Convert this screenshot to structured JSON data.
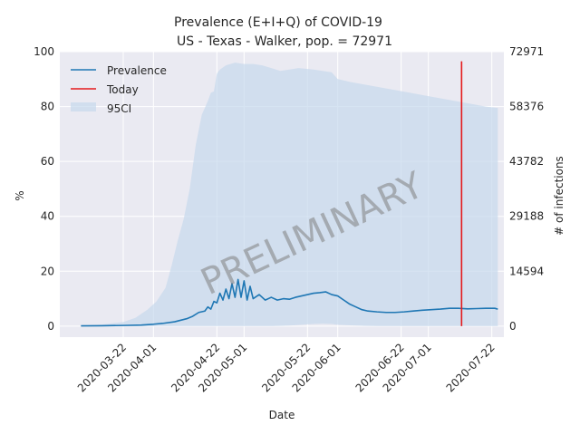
{
  "chart_data": {
    "type": "line",
    "title_line1": "Prevalence (E+I+Q) of COVID-19",
    "title_line2": "US - Texas - Walker, pop. = 72971",
    "xlabel": "Date",
    "ylabel": "%",
    "ylabel_right": "# of infections",
    "ylim": [
      -4,
      100
    ],
    "x_start_date": "2020-03-01",
    "x_end_date": "2020-07-26",
    "yticks_left": [
      "0",
      "20",
      "40",
      "60",
      "80",
      "100"
    ],
    "yticks_left_values": [
      0,
      20,
      40,
      60,
      80,
      100
    ],
    "yticks_right": [
      "0",
      "14594",
      "29188",
      "43782",
      "58376",
      "72971"
    ],
    "yticks_right_values": [
      0,
      20,
      40,
      60,
      80,
      100
    ],
    "xticks": [
      "2020-03-22",
      "2020-04-01",
      "2020-04-22",
      "2020-05-01",
      "2020-05-22",
      "2020-06-01",
      "2020-06-22",
      "2020-07-01",
      "2020-07-22"
    ],
    "grid": true,
    "legend_position": "top-left",
    "legend": [
      "Prevalence",
      "Today",
      "95CI"
    ],
    "watermark": "PRELIMINARY",
    "colors": {
      "prevalence": "#1f77b4",
      "today": "#e41a1c",
      "ci": "#c6d8ec",
      "plot_bg": "#eaeaf2",
      "grid": "#ffffff"
    },
    "today": {
      "date": "2020-07-12",
      "y_bottom": 0,
      "y_top": 96.5
    },
    "series": [
      {
        "name": "Prevalence",
        "x": [
          "2020-03-08",
          "2020-03-15",
          "2020-03-22",
          "2020-03-28",
          "2020-04-01",
          "2020-04-04",
          "2020-04-08",
          "2020-04-12",
          "2020-04-14",
          "2020-04-16",
          "2020-04-18",
          "2020-04-19",
          "2020-04-20",
          "2020-04-21",
          "2020-04-22",
          "2020-04-23",
          "2020-04-24",
          "2020-04-25",
          "2020-04-26",
          "2020-04-27",
          "2020-04-28",
          "2020-04-29",
          "2020-04-30",
          "2020-05-01",
          "2020-05-02",
          "2020-05-03",
          "2020-05-04",
          "2020-05-06",
          "2020-05-08",
          "2020-05-10",
          "2020-05-12",
          "2020-05-14",
          "2020-05-16",
          "2020-05-18",
          "2020-05-20",
          "2020-05-22",
          "2020-05-24",
          "2020-05-26",
          "2020-05-28",
          "2020-05-30",
          "2020-06-01",
          "2020-06-03",
          "2020-06-05",
          "2020-06-07",
          "2020-06-09",
          "2020-06-11",
          "2020-06-14",
          "2020-06-17",
          "2020-06-20",
          "2020-06-23",
          "2020-06-26",
          "2020-06-29",
          "2020-07-02",
          "2020-07-05",
          "2020-07-08",
          "2020-07-11",
          "2020-07-14",
          "2020-07-17",
          "2020-07-20",
          "2020-07-23",
          "2020-07-24"
        ],
        "values": [
          0.1,
          0.15,
          0.25,
          0.4,
          0.7,
          1.0,
          1.6,
          2.7,
          3.6,
          5.0,
          5.5,
          7.0,
          6.2,
          9.0,
          8.5,
          12.0,
          9.5,
          13.5,
          10.0,
          15.5,
          10.5,
          17.0,
          10.5,
          16.5,
          9.5,
          14.5,
          10.0,
          11.5,
          9.5,
          10.5,
          9.5,
          10.0,
          9.8,
          10.5,
          11.0,
          11.5,
          12.0,
          12.2,
          12.5,
          11.5,
          11.0,
          9.5,
          8.0,
          7.0,
          6.0,
          5.5,
          5.2,
          5.0,
          5.0,
          5.2,
          5.5,
          5.8,
          6.0,
          6.2,
          6.5,
          6.5,
          6.3,
          6.4,
          6.5,
          6.5,
          6.2
        ]
      }
    ],
    "ci": {
      "name": "95CI",
      "x": [
        "2020-03-08",
        "2020-03-15",
        "2020-03-22",
        "2020-03-26",
        "2020-03-30",
        "2020-04-02",
        "2020-04-05",
        "2020-04-07",
        "2020-04-09",
        "2020-04-11",
        "2020-04-13",
        "2020-04-15",
        "2020-04-17",
        "2020-04-19",
        "2020-04-20",
        "2020-04-21",
        "2020-04-22",
        "2020-04-23",
        "2020-04-25",
        "2020-04-28",
        "2020-05-01",
        "2020-05-04",
        "2020-05-07",
        "2020-05-10",
        "2020-05-13",
        "2020-05-16",
        "2020-05-19",
        "2020-05-21",
        "2020-05-24",
        "2020-05-27",
        "2020-05-30",
        "2020-06-01",
        "2020-06-05",
        "2020-06-10",
        "2020-06-15",
        "2020-06-20",
        "2020-06-25",
        "2020-06-30",
        "2020-07-05",
        "2020-07-10",
        "2020-07-15",
        "2020-07-20",
        "2020-07-24"
      ],
      "upper": [
        0.2,
        0.6,
        1.5,
        3.0,
        6.0,
        9.0,
        14.0,
        22.0,
        31.0,
        39.0,
        50.0,
        66.0,
        77.0,
        82.0,
        85.0,
        85.5,
        92.0,
        93.5,
        95.0,
        96.0,
        95.5,
        95.5,
        95.0,
        94.0,
        93.0,
        93.5,
        94.0,
        93.8,
        93.5,
        93.0,
        92.5,
        90.0,
        89.0,
        88.0,
        87.0,
        86.0,
        85.0,
        84.0,
        83.0,
        82.0,
        81.0,
        80.0,
        79.5
      ],
      "lower": [
        0,
        0,
        0,
        0,
        0,
        0,
        0,
        0,
        0,
        0,
        0,
        0,
        0,
        0,
        0,
        0,
        0,
        0,
        0,
        0,
        0,
        0,
        0,
        0,
        0.1,
        0.2,
        0.4,
        0.6,
        0.8,
        0.9,
        0.8,
        0.5,
        0.3,
        0.1,
        0,
        0,
        0,
        0,
        0,
        0,
        0,
        0,
        0
      ]
    }
  }
}
